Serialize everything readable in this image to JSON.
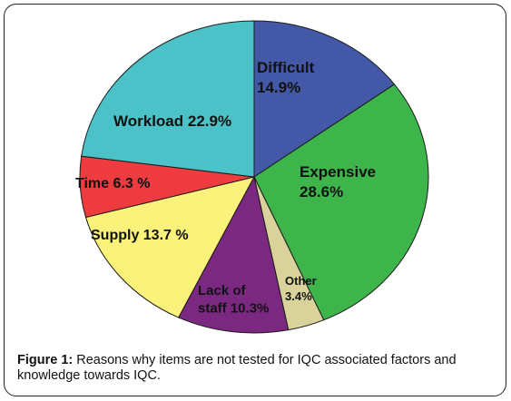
{
  "chart_data": {
    "type": "pie",
    "title": "",
    "slices": [
      {
        "name": "Difficult",
        "value": 14.9,
        "color": "#4359a8",
        "label_lines": [
          "Difficult",
          "14.9%"
        ]
      },
      {
        "name": "Expensive",
        "value": 28.6,
        "color": "#3db54a",
        "label_lines": [
          "Expensive",
          "28.6%"
        ]
      },
      {
        "name": "Other",
        "value": 3.4,
        "color": "#d9d39b",
        "label_lines": [
          "Other",
          "3.4%"
        ]
      },
      {
        "name": "Lack of staff",
        "value": 10.3,
        "color": "#7b2880",
        "label_lines": [
          "Lack of",
          "staff 10.3%"
        ]
      },
      {
        "name": "Supply",
        "value": 13.7,
        "color": "#faf27a",
        "label_lines": [
          "Supply 13.7 %"
        ]
      },
      {
        "name": "Time",
        "value": 6.3,
        "color": "#ee3b3f",
        "label_lines": [
          "Time 6.3 %"
        ]
      },
      {
        "name": "Workload",
        "value": 22.9,
        "color": "#4bc1c8",
        "label_lines": [
          "Workload 22.9%"
        ]
      }
    ]
  },
  "caption": {
    "label": "Figure 1:",
    "text": " Reasons why items are not tested for IQC associated factors and knowledge towards IQC."
  }
}
